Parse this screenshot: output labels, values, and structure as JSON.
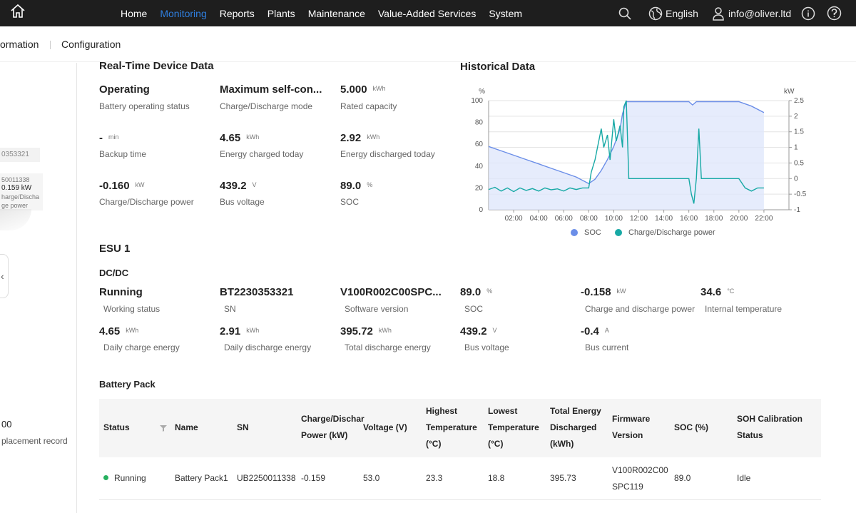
{
  "nav": {
    "items": [
      {
        "label": "Home"
      },
      {
        "label": "Monitoring"
      },
      {
        "label": "Reports"
      },
      {
        "label": "Plants"
      },
      {
        "label": "Maintenance"
      },
      {
        "label": "Value-Added Services"
      },
      {
        "label": "System"
      }
    ],
    "language": "English",
    "user": "info@oliver.ltd"
  },
  "subnav": {
    "tab1": "ormation",
    "tab2": "Configuration"
  },
  "left": {
    "sn": "0353321",
    "card_line1": "50011338",
    "card_line2": "0.159 kW",
    "card_line3": "harge/Discha",
    "card_line4": "ge power",
    "number": "00",
    "record": "placement record"
  },
  "realtime": {
    "title": "Real-Time Device Data",
    "items": [
      {
        "value": "Operating",
        "unit": "",
        "label": "Battery operating status"
      },
      {
        "value": "Maximum self-con...",
        "unit": "",
        "label": "Charge/Discharge mode"
      },
      {
        "value": "5.000",
        "unit": "kWh",
        "label": "Rated capacity"
      },
      {
        "value": "-",
        "unit": "min",
        "label": "Backup time"
      },
      {
        "value": "4.65",
        "unit": "kWh",
        "label": "Energy charged today"
      },
      {
        "value": "2.92",
        "unit": "kWh",
        "label": "Energy discharged today"
      },
      {
        "value": "-0.160",
        "unit": "kW",
        "label": "Charge/Discharge power"
      },
      {
        "value": "439.2",
        "unit": "V",
        "label": "Bus voltage"
      },
      {
        "value": "89.0",
        "unit": "%",
        "label": "SOC"
      }
    ]
  },
  "historical": {
    "title": "Historical Data"
  },
  "esu": {
    "title": "ESU 1",
    "dcdc_title": "DC/DC",
    "items": [
      {
        "value": "Running",
        "unit": "",
        "label": "Working status"
      },
      {
        "value": "BT2230353321",
        "unit": "",
        "label": "SN"
      },
      {
        "value": "V100R002C00SPC...",
        "unit": "",
        "label": "Software version"
      },
      {
        "value": "89.0",
        "unit": "%",
        "label": "SOC"
      },
      {
        "value": "-0.158",
        "unit": "kW",
        "label": "Charge and discharge power"
      },
      {
        "value": "34.6",
        "unit": "°C",
        "label": "Internal temperature"
      },
      {
        "value": "4.65",
        "unit": "kWh",
        "label": "Daily charge energy"
      },
      {
        "value": "2.91",
        "unit": "kWh",
        "label": "Daily discharge energy"
      },
      {
        "value": "395.72",
        "unit": "kWh",
        "label": "Total discharge energy"
      },
      {
        "value": "439.2",
        "unit": "V",
        "label": "Bus voltage"
      },
      {
        "value": "-0.4",
        "unit": "A",
        "label": "Bus current"
      }
    ]
  },
  "battery_pack": {
    "title": "Battery Pack",
    "headers": {
      "status": [
        "Status"
      ],
      "name": [
        "Name"
      ],
      "sn": [
        "SN"
      ],
      "power": [
        "Charge/Dischar",
        "Power (kW)"
      ],
      "voltage": [
        "Voltage (V)"
      ],
      "high_temp": [
        "Highest",
        "Temperature",
        "(°C)"
      ],
      "low_temp": [
        "Lowest",
        "Temperature",
        "(°C)"
      ],
      "energy": [
        "Total Energy",
        "Discharged",
        "(kWh)"
      ],
      "firmware": [
        "Firmware",
        "Version"
      ],
      "soc": [
        "SOC (%)"
      ],
      "soh": [
        "SOH Calibration",
        "Status"
      ]
    },
    "rows": [
      {
        "status": "Running",
        "name": "Battery Pack1",
        "sn": "UB2250011338",
        "power": "-0.159",
        "voltage": "53.0",
        "high_temp": "23.3",
        "low_temp": "18.8",
        "energy": "395.73",
        "firmware": [
          "V100R002C00",
          "SPC119"
        ],
        "soc": "89.0",
        "soh": "Idle"
      }
    ]
  },
  "chart_data": {
    "type": "line",
    "title": "Historical Data",
    "x_ticks": [
      "02:00",
      "04:00",
      "06:00",
      "08:00",
      "10:00",
      "12:00",
      "14:00",
      "16:00",
      "18:00",
      "20:00",
      "22:00"
    ],
    "xlim_hours": [
      0,
      24
    ],
    "y_left": {
      "unit": "%",
      "ticks": [
        0,
        20,
        40,
        60,
        80,
        100
      ],
      "range": [
        0,
        100
      ]
    },
    "y_right": {
      "unit": "kW",
      "ticks": [
        "2.5",
        "2",
        "1.5",
        "1",
        "0.5",
        "0",
        "-0.5",
        "-1"
      ],
      "range": [
        -1,
        2.5
      ]
    },
    "legend_position": "bottom",
    "grid": true,
    "series": [
      {
        "name": "SOC",
        "axis": "left",
        "color": "#6b8ee8",
        "x": [
          0,
          1,
          2,
          3,
          4,
          5,
          6,
          7,
          8,
          8.5,
          9,
          9.5,
          10,
          10.5,
          10.7,
          11,
          11.5,
          12,
          13,
          14,
          15,
          16,
          16.3,
          16.6,
          17,
          18,
          19,
          20,
          21,
          22
        ],
        "y": [
          58,
          54,
          50,
          46,
          42,
          38,
          34,
          30,
          24,
          28,
          36,
          46,
          58,
          74,
          88,
          99,
          99,
          99,
          99,
          99,
          99,
          99,
          96,
          99,
          99,
          99,
          99,
          99,
          95,
          89
        ]
      },
      {
        "name": "Charge/Discharge power",
        "axis": "right",
        "color": "#17a9a5",
        "x": [
          0,
          0.5,
          1,
          1.5,
          2,
          2.5,
          3,
          3.5,
          4,
          4.5,
          5,
          5.5,
          6,
          6.5,
          7,
          7.5,
          8,
          8.2,
          8.5,
          8.7,
          9,
          9.2,
          9.5,
          9.7,
          10,
          10.2,
          10.5,
          10.7,
          10.8,
          11,
          11.2,
          11.5,
          12,
          13,
          14,
          15,
          15.5,
          16,
          16.2,
          16.4,
          16.6,
          16.8,
          17,
          18,
          19,
          20,
          20.5,
          21,
          21.5,
          22
        ],
        "y": [
          -0.35,
          -0.28,
          -0.4,
          -0.3,
          -0.42,
          -0.3,
          -0.38,
          -0.32,
          -0.4,
          -0.3,
          -0.36,
          -0.33,
          -0.4,
          -0.3,
          -0.35,
          -0.3,
          -0.3,
          0.2,
          0.6,
          1.0,
          1.6,
          1.0,
          1.4,
          0.6,
          1.9,
          1.2,
          1.7,
          1.0,
          2.3,
          2.5,
          0,
          0,
          0,
          0,
          0,
          0,
          0,
          0,
          -0.5,
          -0.8,
          0,
          1.6,
          0,
          0,
          0,
          0,
          -0.3,
          -0.4,
          -0.3,
          -0.3
        ]
      }
    ]
  },
  "colors": {
    "accent": "#2f7fe0",
    "topbar": "#1e1e1e",
    "soc": "#6b8ee8",
    "power": "#17a9a5",
    "running": "#26b05f"
  }
}
